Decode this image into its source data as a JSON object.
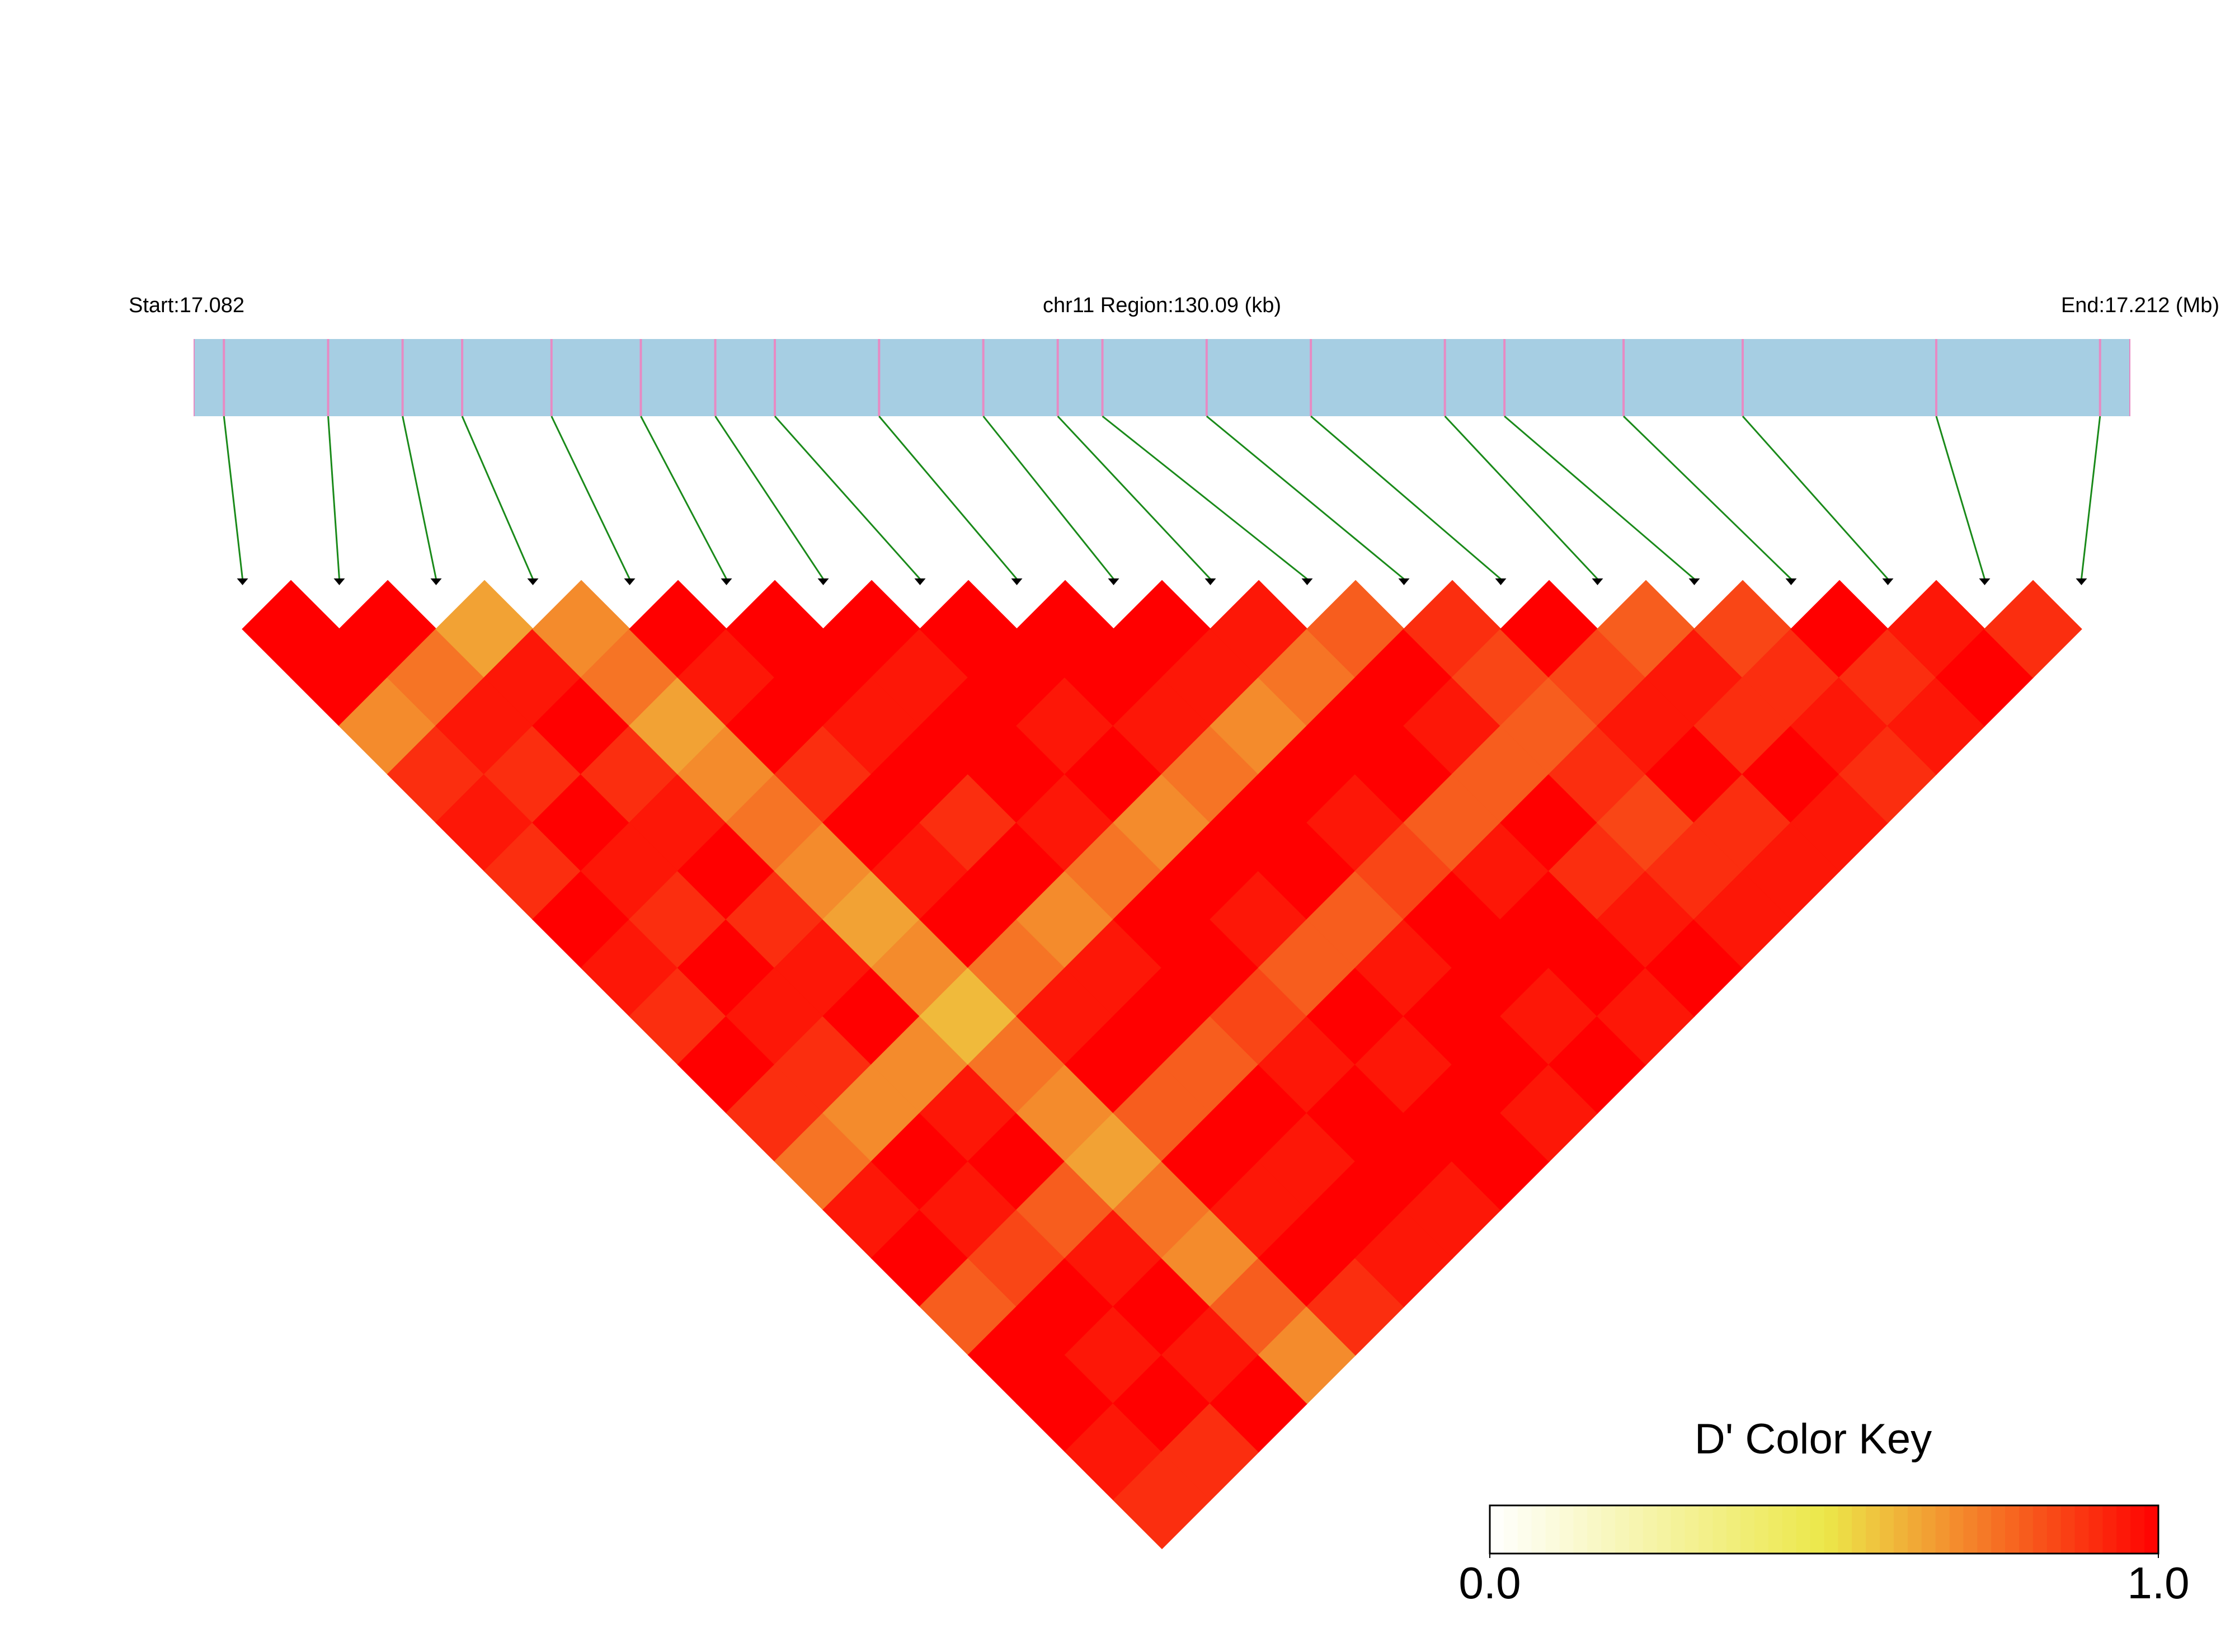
{
  "chart_data": {
    "type": "ld_heatmap",
    "start_label": "Start:17.082",
    "region_label": "chr11 Region:130.09 (kb)",
    "end_label": "End:17.212 (Mb)",
    "xlim": [
      17.082,
      17.212
    ],
    "snp_positions": [
      17.084,
      17.091,
      17.096,
      17.1,
      17.106,
      17.112,
      17.117,
      17.121,
      17.128,
      17.135,
      17.14,
      17.143,
      17.15,
      17.157,
      17.166,
      17.17,
      17.178,
      17.186,
      17.199,
      17.21
    ],
    "d_prime": [
      [
        1,
        1,
        0.7,
        0.9,
        0.95,
        0.9,
        1,
        0.95,
        0.9,
        1,
        0.9,
        0.75,
        0.95,
        1,
        0.8,
        1,
        1,
        0.95,
        0.9
      ],
      [
        1,
        0.75,
        0.95,
        0.9,
        1,
        0.95,
        0.9,
        1,
        0.95,
        0.9,
        0.7,
        1,
        0.95,
        0.85,
        1,
        0.95,
        1,
        0.9
      ],
      [
        0.65,
        0.95,
        1,
        0.9,
        0.95,
        1,
        0.9,
        0.95,
        1,
        0.7,
        0.95,
        1,
        0.8,
        0.95,
        1,
        0.95,
        1
      ],
      [
        0.7,
        0.75,
        0.65,
        0.7,
        0.75,
        0.7,
        0.65,
        0.7,
        0.6,
        0.75,
        0.7,
        0.65,
        0.75,
        0.7,
        0.8,
        0.7
      ],
      [
        1,
        0.95,
        1,
        0.9,
        1,
        0.95,
        1,
        0.75,
        0.95,
        1,
        0.8,
        1,
        0.95,
        1,
        0.9
      ],
      [
        1,
        1,
        0.95,
        1,
        0.9,
        1,
        0.7,
        0.95,
        1,
        0.8,
        1,
        0.95,
        1,
        0.95
      ],
      [
        1,
        0.95,
        1,
        1,
        0.95,
        0.75,
        1,
        1,
        0.85,
        0.95,
        1,
        1,
        0.95
      ],
      [
        1,
        1,
        0.95,
        1,
        0.7,
        1,
        0.95,
        0.8,
        1,
        0.95,
        1,
        1
      ],
      [
        1,
        1,
        0.95,
        0.75,
        1,
        1,
        0.8,
        0.95,
        1,
        1,
        0.95
      ],
      [
        1,
        0.95,
        0.7,
        1,
        0.95,
        0.85,
        1,
        1,
        0.95,
        1
      ],
      [
        0.95,
        0.75,
        1,
        1,
        0.8,
        0.95,
        1,
        1,
        0.95
      ],
      [
        0.8,
        1,
        0.95,
        0.8,
        1,
        0.9,
        0.95,
        1
      ],
      [
        0.9,
        0.85,
        0.8,
        0.9,
        0.85,
        0.9,
        0.95
      ],
      [
        1,
        0.85,
        0.95,
        1,
        0.9,
        0.95
      ],
      [
        0.8,
        0.95,
        0.9,
        1,
        0.95
      ],
      [
        0.85,
        0.9,
        0.95,
        0.9
      ],
      [
        1,
        0.9,
        0.95
      ],
      [
        0.95,
        1
      ],
      [
        0.9
      ]
    ],
    "bar_color": "#a6cee3",
    "snp_color": "#e78ac3",
    "link_color": "#1a8a1a",
    "color_low": "#ffffff",
    "color_mid": "#ece84a",
    "color_high": "#ff0000",
    "key_title": "D' Color Key",
    "key_ticks": [
      {
        "value": 0,
        "label": "0.0"
      },
      {
        "value": 1,
        "label": "1.0"
      }
    ]
  }
}
